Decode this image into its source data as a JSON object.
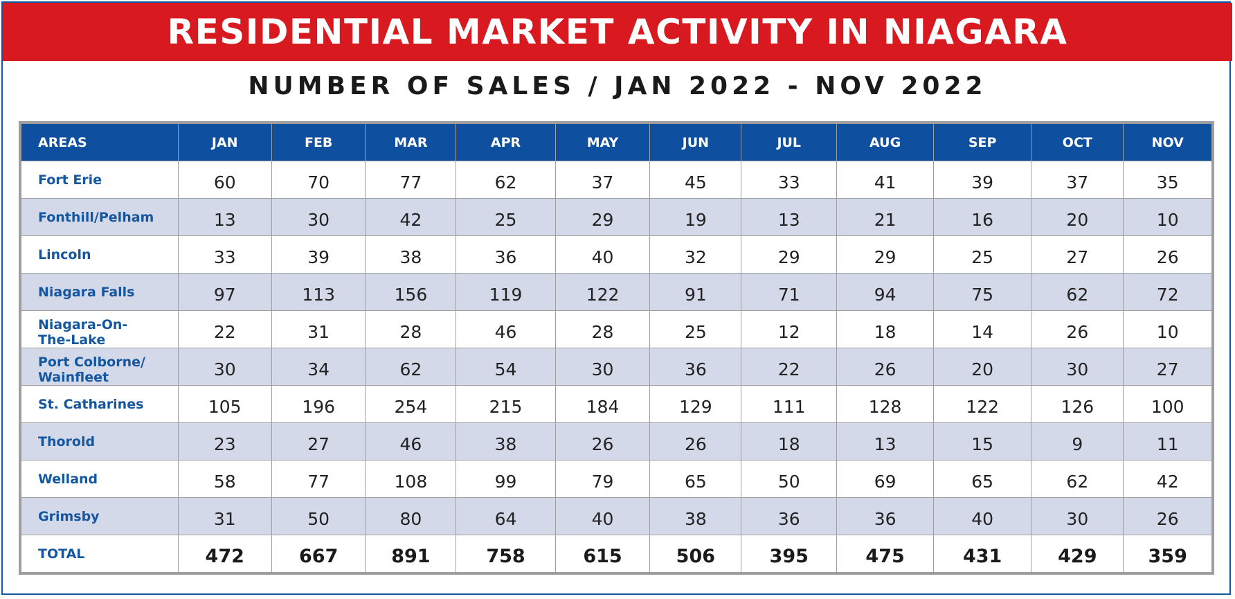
{
  "title": "RESIDENTIAL MARKET ACTIVITY IN NIAGARA",
  "subtitle": "NUMBER OF SALES / JAN 2022 - NOV 2022",
  "colors": {
    "banner": "#d8191f",
    "header": "#0f4f9f",
    "area_text": "#1457a0",
    "alt_row": "#d4d9ea",
    "frame": "#0f57a6"
  },
  "table": {
    "headers": [
      "AREAS",
      "JAN",
      "FEB",
      "MAR",
      "APR",
      "MAY",
      "JUN",
      "JUL",
      "AUG",
      "SEP",
      "OCT",
      "NOV"
    ],
    "rows": [
      {
        "area": "Fort Erie",
        "values": [
          "60",
          "70",
          "77",
          "62",
          "37",
          "45",
          "33",
          "41",
          "39",
          "37",
          "35"
        ]
      },
      {
        "area": "Fonthill/Pelham",
        "values": [
          "13",
          "30",
          "42",
          "25",
          "29",
          "19",
          "13",
          "21",
          "16",
          "20",
          "10"
        ]
      },
      {
        "area": "Lincoln",
        "values": [
          "33",
          "39",
          "38",
          "36",
          "40",
          "32",
          "29",
          "29",
          "25",
          "27",
          "26"
        ]
      },
      {
        "area": "Niagara Falls",
        "values": [
          "97",
          "113",
          "156",
          "119",
          "122",
          "91",
          "71",
          "94",
          "75",
          "62",
          "72"
        ]
      },
      {
        "area": "Niagara-On-The-Lake",
        "area_lines": [
          "Niagara-On-",
          "The-Lake"
        ],
        "values": [
          "22",
          "31",
          "28",
          "46",
          "28",
          "25",
          "12",
          "18",
          "14",
          "26",
          "10"
        ]
      },
      {
        "area": "Port Colborne/ Wainfleet",
        "area_lines": [
          "Port Colborne/",
          "Wainfleet"
        ],
        "values": [
          "30",
          "34",
          "62",
          "54",
          "30",
          "36",
          "22",
          "26",
          "20",
          "30",
          "27"
        ]
      },
      {
        "area": "St. Catharines",
        "values": [
          "105",
          "196",
          "254",
          "215",
          "184",
          "129",
          "111",
          "128",
          "122",
          "126",
          "100"
        ]
      },
      {
        "area": "Thorold",
        "values": [
          "23",
          "27",
          "46",
          "38",
          "26",
          "26",
          "18",
          "13",
          "15",
          "9",
          "11"
        ]
      },
      {
        "area": "Welland",
        "values": [
          "58",
          "77",
          "108",
          "99",
          "79",
          "65",
          "50",
          "69",
          "65",
          "62",
          "42"
        ]
      },
      {
        "area": "Grimsby",
        "values": [
          "31",
          "50",
          "80",
          "64",
          "40",
          "38",
          "36",
          "36",
          "40",
          "30",
          "26"
        ]
      }
    ],
    "total": {
      "label": "TOTAL",
      "values": [
        "472",
        "667",
        "891",
        "758",
        "615",
        "506",
        "395",
        "475",
        "431",
        "429",
        "359"
      ]
    }
  }
}
